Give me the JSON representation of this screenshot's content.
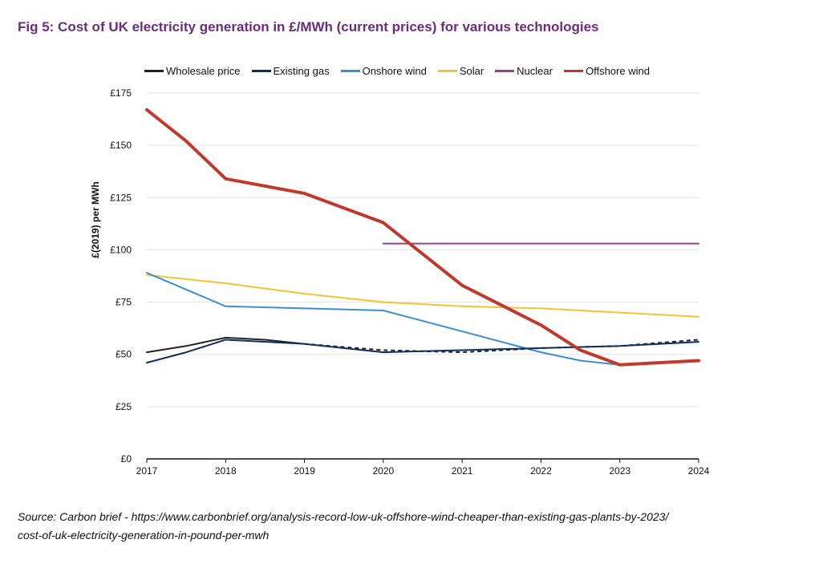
{
  "header": {
    "title": "Fig 5: Cost of UK electricity generation in £/MWh (current prices) for various technologies"
  },
  "footer": {
    "source_line1": "Source: Carbon brief - https://www.carbonbrief.org/analysis-record-low-uk-offshore-wind-cheaper-than-existing-gas-plants-by-2023/",
    "source_line2": "cost-of-uk-electricity-generation-in-pound-per-mwh"
  },
  "chart_data": {
    "type": "line",
    "title": "Fig 5: Cost of UK electricity generation in £/MWh (current prices) for various technologies",
    "xlabel": "",
    "ylabel": "£(2019) per MWh",
    "x": [
      2017,
      2018,
      2019,
      2020,
      2021,
      2022,
      2023,
      2024
    ],
    "xlim": [
      2017,
      2024
    ],
    "ylim": [
      0,
      175
    ],
    "yticks": [
      0,
      25,
      50,
      75,
      100,
      125,
      150,
      175
    ],
    "ytick_labels": [
      "£0",
      "£25",
      "£50",
      "£75",
      "£100",
      "£125",
      "£150",
      "£175"
    ],
    "xtick_labels": [
      "2017",
      "2018",
      "2019",
      "2020",
      "2021",
      "2022",
      "2023",
      "2024"
    ],
    "grid": true,
    "legend_position": "top",
    "series": [
      {
        "name": "Wholesale price",
        "color": "#222222",
        "x": [
          2017,
          2017.5,
          2018,
          2018.5,
          2019,
          2020,
          2021,
          2022,
          2023,
          2024
        ],
        "values": [
          51,
          54,
          58,
          57,
          55,
          52,
          51,
          53,
          54,
          57
        ],
        "dashed_from": 2019
      },
      {
        "name": "Existing gas",
        "color": "#0d2f5c",
        "x": [
          2017,
          2017.5,
          2018,
          2019,
          2020,
          2021,
          2022,
          2023,
          2024
        ],
        "values": [
          46,
          51,
          57,
          55,
          51,
          52,
          53,
          54,
          56
        ]
      },
      {
        "name": "Onshore wind",
        "color": "#3b8fd0",
        "x": [
          2017,
          2017.5,
          2018,
          2019,
          2020,
          2021,
          2022,
          2022.5,
          2023
        ],
        "values": [
          89,
          81,
          73,
          72,
          71,
          61,
          51,
          47,
          45
        ]
      },
      {
        "name": "Solar",
        "color": "#f2c433",
        "x": [
          2017,
          2018,
          2019,
          2020,
          2021,
          2022,
          2023,
          2024
        ],
        "values": [
          88,
          84,
          79,
          75,
          73,
          72,
          70,
          68
        ]
      },
      {
        "name": "Nuclear",
        "color": "#9b3f86",
        "x": [
          2020,
          2024
        ],
        "values": [
          103,
          103
        ]
      },
      {
        "name": "Offshore wind",
        "color": "#c0392b",
        "x": [
          2017,
          2017.5,
          2018,
          2019,
          2020,
          2021,
          2022,
          2022.5,
          2023,
          2024
        ],
        "values": [
          167,
          152,
          134,
          127,
          113,
          83,
          64,
          52,
          45,
          47
        ]
      }
    ]
  }
}
